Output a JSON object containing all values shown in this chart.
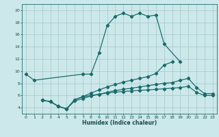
{
  "title": "",
  "xlabel": "Humidex (Indice chaleur)",
  "xlim": [
    -0.5,
    23.5
  ],
  "ylim": [
    3,
    21
  ],
  "xticks": [
    0,
    1,
    2,
    3,
    4,
    5,
    6,
    7,
    8,
    9,
    10,
    11,
    12,
    13,
    14,
    15,
    16,
    17,
    18,
    19,
    20,
    21,
    22,
    23
  ],
  "yticks": [
    4,
    6,
    8,
    10,
    12,
    14,
    16,
    18,
    20
  ],
  "bg_color": "#cce8ea",
  "grid_color": "#aacccc",
  "line_color": "#1a6b6b",
  "line1_x": [
    0,
    1,
    7,
    8,
    9,
    10,
    11,
    12,
    13,
    14,
    15,
    16,
    17,
    19
  ],
  "line1_y": [
    9.5,
    8.5,
    9.5,
    9.5,
    13.0,
    17.5,
    19.0,
    19.5,
    19.0,
    19.5,
    19.0,
    19.2,
    14.5,
    11.5
  ],
  "line2_x": [
    2,
    3,
    4,
    5,
    6,
    7,
    8,
    9,
    10,
    11,
    12,
    13,
    14,
    15,
    16,
    17,
    18,
    19,
    20,
    21,
    22,
    23
  ],
  "line2_y": [
    5.2,
    5.0,
    4.2,
    3.8,
    5.3,
    5.8,
    6.0,
    6.2,
    6.4,
    6.55,
    6.65,
    6.75,
    6.85,
    6.9,
    7.0,
    7.1,
    7.2,
    7.3,
    7.5,
    6.5,
    6.0,
    6.0
  ],
  "line3_x": [
    2,
    3,
    4,
    5,
    6,
    7,
    8,
    9,
    10,
    11,
    12,
    13,
    14,
    15,
    16,
    17,
    18
  ],
  "line3_y": [
    5.2,
    5.0,
    4.2,
    3.8,
    5.3,
    5.8,
    6.4,
    6.9,
    7.4,
    7.8,
    8.2,
    8.5,
    8.8,
    9.1,
    9.6,
    11.0,
    11.5
  ],
  "line4_x": [
    2,
    3,
    4,
    5,
    6,
    7,
    8,
    9,
    10,
    11,
    12,
    13,
    14,
    15,
    16,
    17,
    18,
    19,
    20,
    21,
    22,
    23
  ],
  "line4_y": [
    5.2,
    5.0,
    4.2,
    3.8,
    5.1,
    5.5,
    5.9,
    6.2,
    6.5,
    6.8,
    7.0,
    7.2,
    7.4,
    7.6,
    7.8,
    8.0,
    8.1,
    8.5,
    8.8,
    7.3,
    6.3,
    6.3
  ]
}
